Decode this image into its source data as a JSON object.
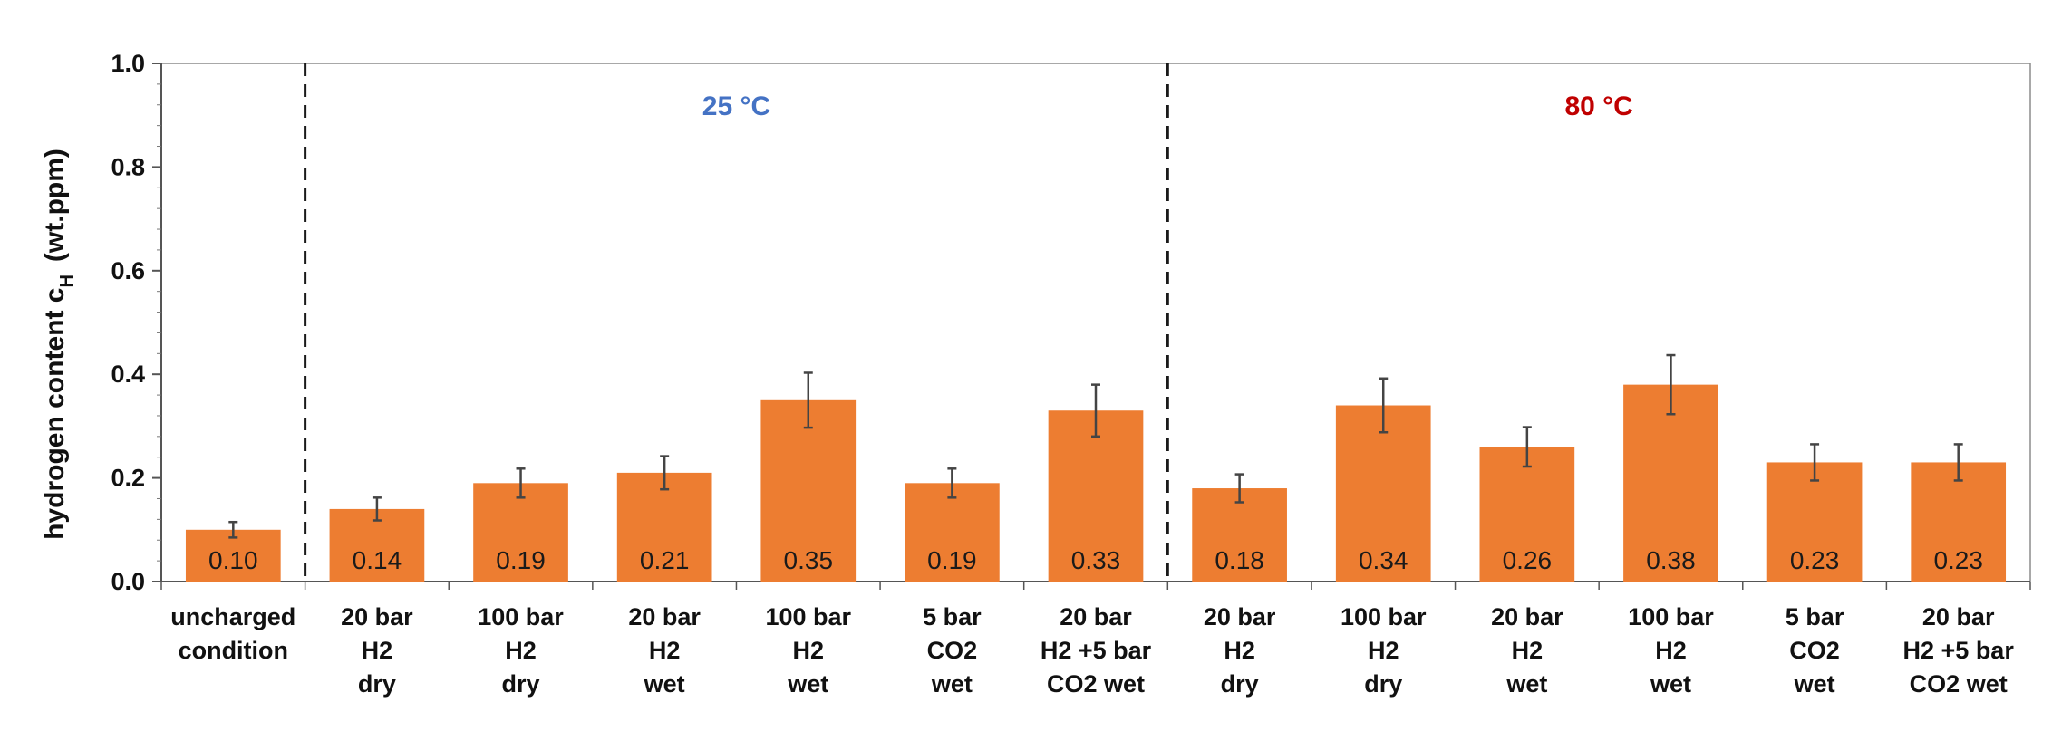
{
  "chart_data": {
    "type": "bar",
    "title": "",
    "xlabel": "",
    "ylabel": {
      "main": "hydrogen content c",
      "subscript": "H",
      "unit": "(wt.ppm)"
    },
    "ylim": [
      0,
      1.0
    ],
    "yticks": [
      "0.0",
      "0.2",
      "0.4",
      "0.6",
      "0.8",
      "1.0"
    ],
    "grid": false,
    "legend": "none",
    "bar_color": "#ED7D31",
    "error_bar_color": "#444444",
    "categories": [
      [
        "uncharged",
        "condition"
      ],
      [
        "20 bar",
        "H2",
        "dry"
      ],
      [
        "100 bar",
        "H2",
        "dry"
      ],
      [
        "20 bar",
        "H2",
        "wet"
      ],
      [
        "100 bar",
        "H2",
        "wet"
      ],
      [
        "5 bar",
        "CO2",
        "wet"
      ],
      [
        "20 bar",
        "H2 +5 bar",
        "CO2 wet"
      ],
      [
        "20 bar",
        "H2",
        "dry"
      ],
      [
        "100 bar",
        "H2",
        "dry"
      ],
      [
        "20 bar",
        "H2",
        "wet"
      ],
      [
        "100 bar",
        "H2",
        "wet"
      ],
      [
        "5 bar",
        "CO2",
        "wet"
      ],
      [
        "20 bar",
        "H2 +5 bar",
        "CO2 wet"
      ]
    ],
    "values": [
      0.1,
      0.14,
      0.19,
      0.21,
      0.35,
      0.19,
      0.33,
      0.18,
      0.34,
      0.26,
      0.38,
      0.23,
      0.23
    ],
    "value_labels": [
      "0.10",
      "0.14",
      "0.19",
      "0.21",
      "0.35",
      "0.19",
      "0.33",
      "0.18",
      "0.34",
      "0.26",
      "0.38",
      "0.23",
      "0.23"
    ],
    "errors": [
      0.015,
      0.022,
      0.028,
      0.032,
      0.053,
      0.028,
      0.05,
      0.027,
      0.052,
      0.038,
      0.057,
      0.035,
      0.035
    ],
    "groups": [
      {
        "label": "25 °C",
        "color": "#4472C4",
        "first_index": 1,
        "last_index": 6
      },
      {
        "label": "80 °C",
        "color": "#C00000",
        "first_index": 7,
        "last_index": 12
      }
    ],
    "separators_after_index": [
      0,
      6
    ]
  }
}
